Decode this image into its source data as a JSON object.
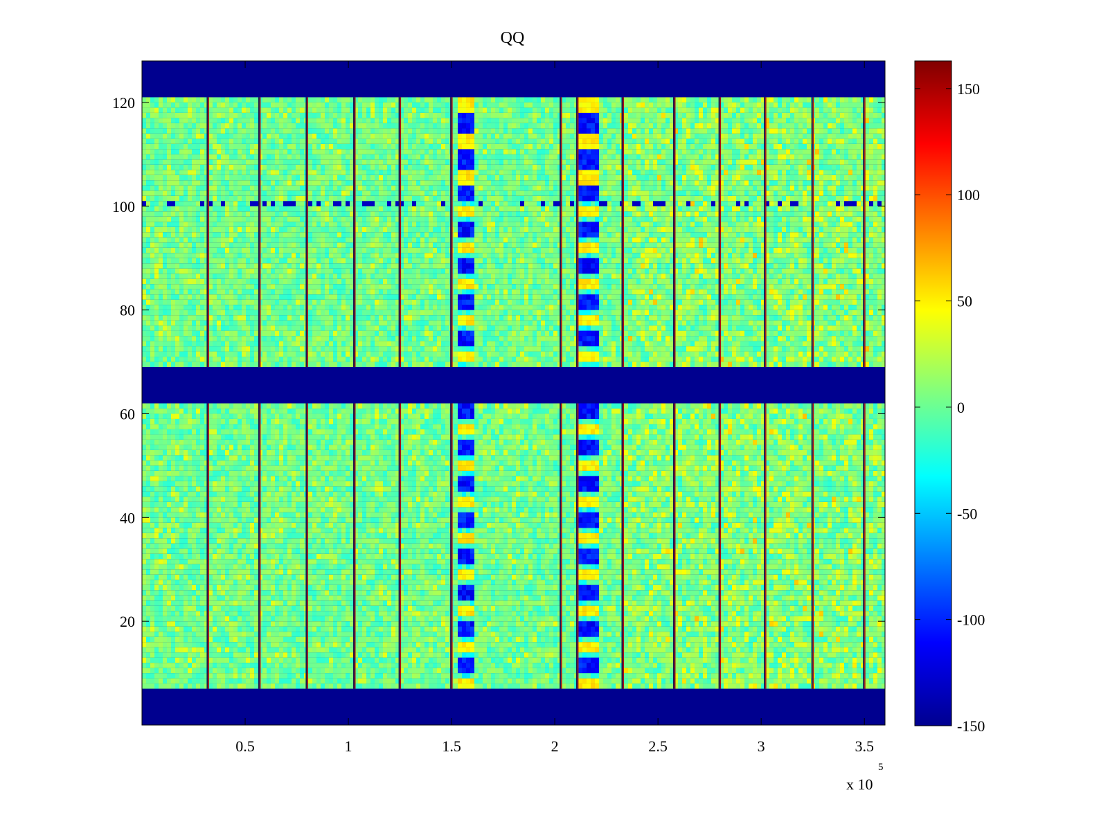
{
  "chart_data": {
    "type": "heatmap",
    "title": "QQ",
    "xlabel": "",
    "ylabel": "",
    "xlim": [
      0,
      360000
    ],
    "ylim": [
      0,
      128
    ],
    "x_ticks": [
      50000,
      100000,
      150000,
      200000,
      250000,
      300000,
      350000
    ],
    "x_tick_labels": [
      "0.5",
      "1",
      "1.5",
      "2",
      "2.5",
      "3",
      "3.5"
    ],
    "x_exponent_label": "x 10",
    "x_exponent": "5",
    "y_ticks": [
      20,
      40,
      60,
      80,
      100,
      120
    ],
    "y_tick_labels": [
      "20",
      "40",
      "60",
      "80",
      "100",
      "120"
    ],
    "colormap": "jet",
    "color_range": [
      -150,
      163
    ],
    "colorbar_ticks": [
      150,
      100,
      50,
      0,
      -50,
      -100,
      -150
    ],
    "colorbar_tick_labels": [
      "150",
      "100",
      "50",
      "0",
      "-50",
      "-100",
      "-150"
    ],
    "background_value": -150,
    "masked_y_bands": [
      [
        0,
        7
      ],
      [
        62,
        69
      ],
      [
        121,
        128
      ]
    ],
    "data_y_bands": [
      [
        7,
        62
      ],
      [
        69,
        121
      ]
    ],
    "vertical_stripes_x": [
      32000,
      57000,
      80000,
      103000,
      125000,
      150000,
      203000,
      211000,
      233000,
      258000,
      280000,
      302000,
      325000,
      350000
    ],
    "blue_columns_x": [
      [
        151000,
        161000
      ],
      [
        211000,
        221000
      ]
    ],
    "blue_row_y": 100,
    "grid": false,
    "legend": "none",
    "colorbar_position": "right"
  }
}
